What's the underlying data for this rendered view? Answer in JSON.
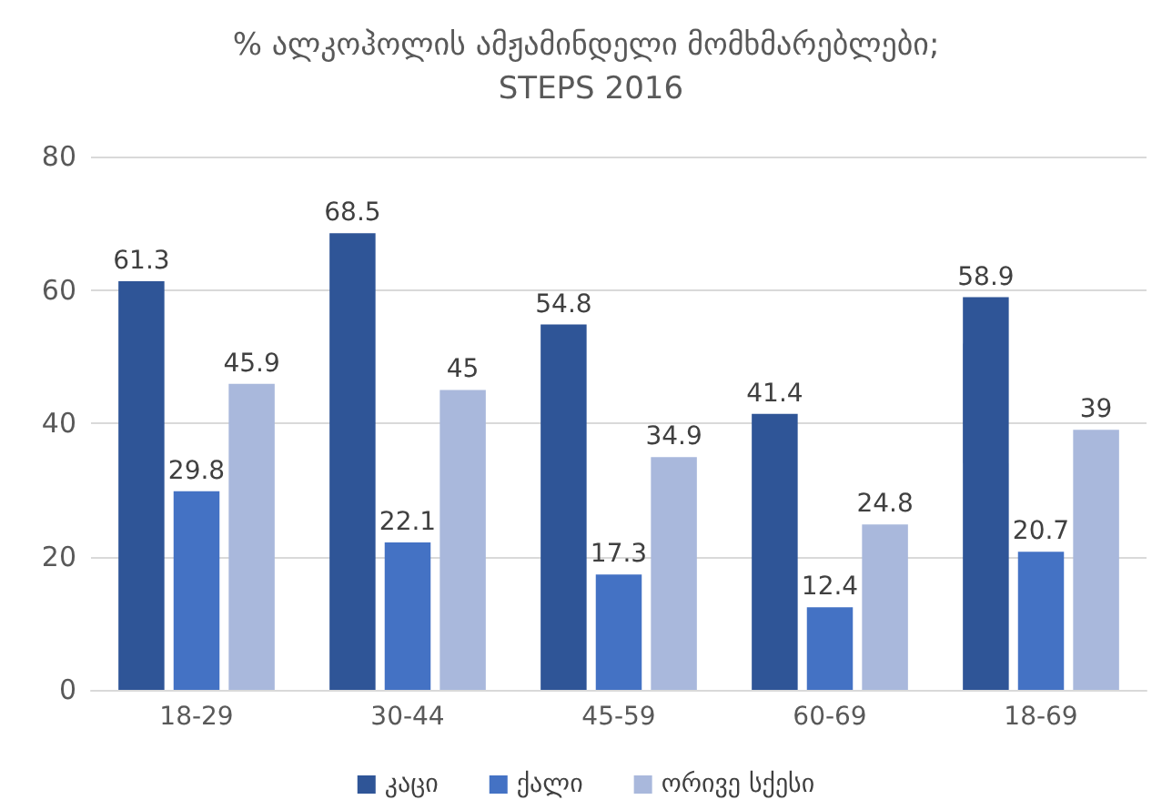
{
  "chart_data": {
    "type": "bar",
    "title": "% ალკოჰოლის ამჟამინდელი მომხმარებლები; STEPS 2016",
    "categories": [
      "18-29",
      "30-44",
      "45-59",
      "60-69",
      "18-69"
    ],
    "series": [
      {
        "name": "კაცი",
        "color": "#2f5597",
        "values": [
          61.3,
          68.5,
          54.8,
          41.4,
          58.9
        ]
      },
      {
        "name": "ქალი",
        "color": "#4472c4",
        "values": [
          29.8,
          22.1,
          17.3,
          12.4,
          20.7
        ]
      },
      {
        "name": "ორივე სქესი",
        "color": "#a9b8dc",
        "values": [
          45.9,
          45,
          34.9,
          24.8,
          39
        ]
      }
    ],
    "ylim": [
      0,
      80
    ],
    "yticks": [
      0,
      20,
      40,
      60,
      80
    ],
    "grid": "y",
    "legend": "bottom",
    "data_labels": true
  }
}
